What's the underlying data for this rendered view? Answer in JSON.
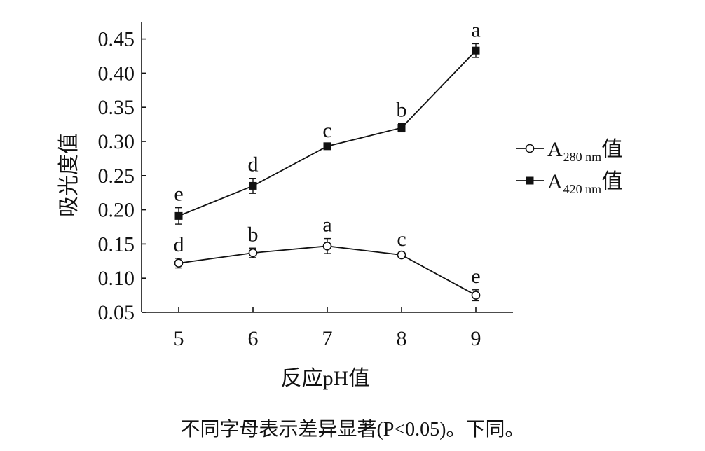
{
  "chart_data": {
    "type": "line",
    "x": [
      5,
      6,
      7,
      8,
      9
    ],
    "xlabel": "反应pH值",
    "ylabel": "吸光度值",
    "ylim": [
      0.05,
      0.47
    ],
    "yticks": [
      "0.05",
      "0.10",
      "0.15",
      "0.20",
      "0.25",
      "0.30",
      "0.35",
      "0.40",
      "0.45"
    ],
    "xticks": [
      "5",
      "6",
      "7",
      "8",
      "9"
    ],
    "grid": false,
    "legend_position": "right",
    "series": [
      {
        "key": "a280",
        "name_main": "A",
        "name_sub": "280 nm",
        "name_suffix": "值",
        "marker": "open-circle",
        "values": [
          0.122,
          0.137,
          0.147,
          0.134,
          0.075
        ],
        "errors": [
          0.007,
          0.007,
          0.011,
          0.003,
          0.008
        ],
        "labels": [
          "d",
          "b",
          "a",
          "c",
          "e"
        ]
      },
      {
        "key": "a420",
        "name_main": "A",
        "name_sub": "420 nm",
        "name_suffix": "值",
        "marker": "filled-square",
        "values": [
          0.191,
          0.235,
          0.293,
          0.32,
          0.433
        ],
        "errors": [
          0.012,
          0.011,
          0.003,
          0.006,
          0.01
        ],
        "labels": [
          "e",
          "d",
          "c",
          "b",
          "a"
        ]
      }
    ],
    "caption": "不同字母表示差异显著(P<0.05)。下同。"
  }
}
